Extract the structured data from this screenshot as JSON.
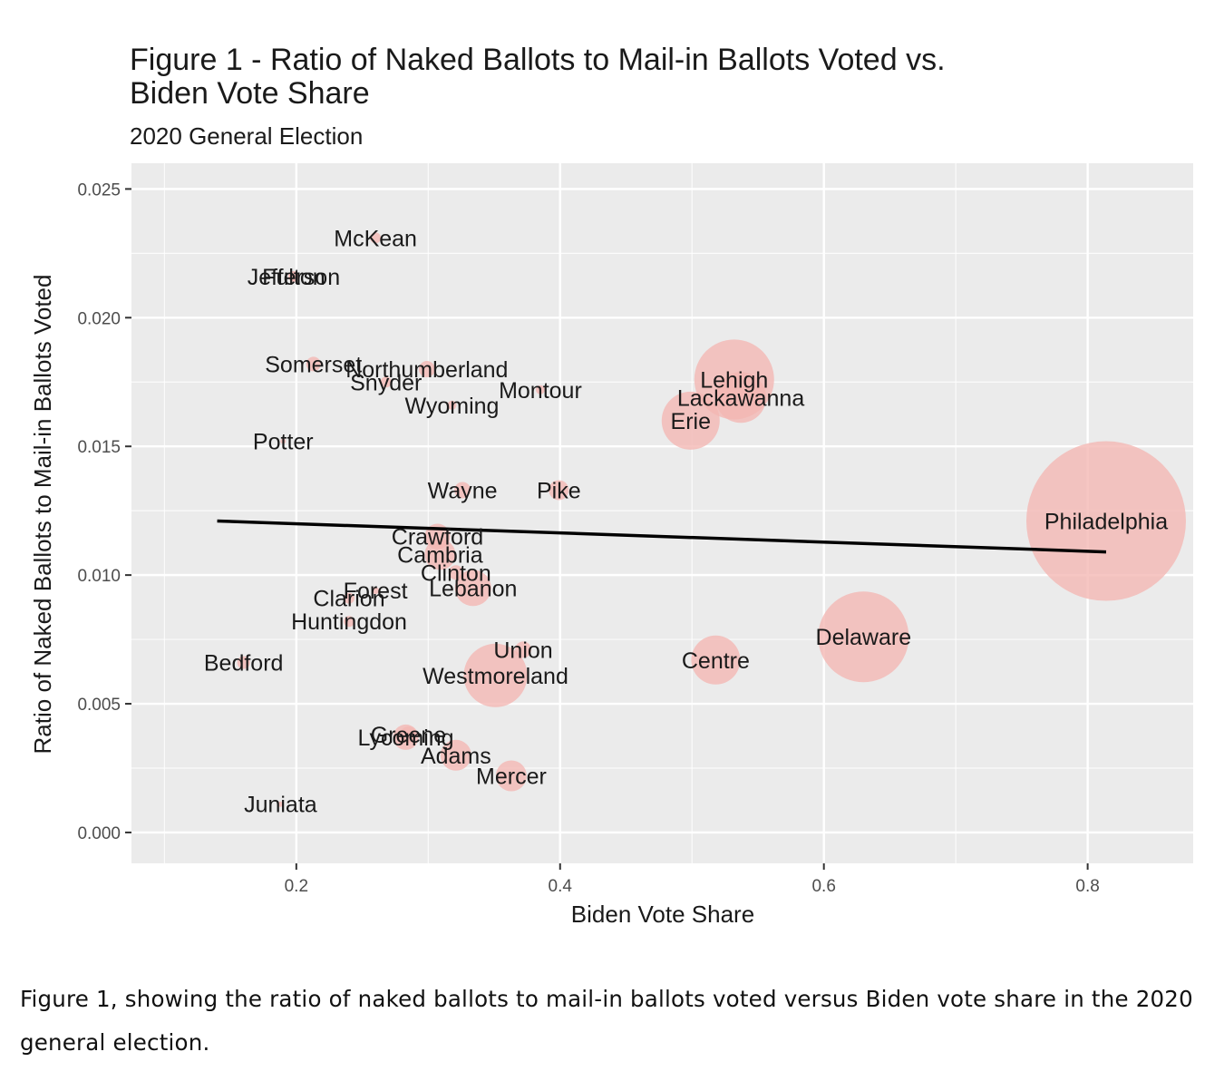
{
  "chart_data": {
    "type": "scatter",
    "title": "Figure 1 - Ratio of Naked Ballots to Mail-in Ballots Voted vs. Biden Vote Share",
    "title_lines": [
      "Figure 1 - Ratio of Naked Ballots to Mail-in Ballots Voted vs.",
      "Biden Vote Share"
    ],
    "subtitle": "2020 General Election",
    "xlabel": "Biden Vote Share",
    "ylabel": "Ratio of Naked Ballots to Mail-in Ballots Voted",
    "xlim": [
      0.075,
      0.88
    ],
    "ylim": [
      -0.0012,
      0.026
    ],
    "x_ticks": [
      0.2,
      0.4,
      0.6,
      0.8
    ],
    "x_tick_labels": [
      "0.2",
      "0.4",
      "0.6",
      "0.8"
    ],
    "y_ticks": [
      0.0,
      0.005,
      0.01,
      0.015,
      0.02,
      0.025
    ],
    "y_tick_labels": [
      "0.000",
      "0.005",
      "0.010",
      "0.015",
      "0.020",
      "0.025"
    ],
    "grid": true,
    "point_color": "#f4b6b2",
    "background_color": "#ebebeb",
    "grid_color": "#ffffff",
    "trend_line_color": "#000000",
    "point_size_encoding": "bubble size (no legend shown)",
    "points": [
      {
        "label": "McKean",
        "x": 0.26,
        "y": 0.0231,
        "size": 6
      },
      {
        "label": "Fulton",
        "x": 0.198,
        "y": 0.0216,
        "size": 5
      },
      {
        "label": "Jefferson",
        "x": 0.198,
        "y": 0.0216,
        "size": 6
      },
      {
        "label": "Somerset",
        "x": 0.213,
        "y": 0.0182,
        "size": 8
      },
      {
        "label": "Northumberland",
        "x": 0.299,
        "y": 0.018,
        "size": 9
      },
      {
        "label": "Snyder",
        "x": 0.268,
        "y": 0.0175,
        "size": 6
      },
      {
        "label": "Montour",
        "x": 0.385,
        "y": 0.0172,
        "size": 5
      },
      {
        "label": "Wyoming",
        "x": 0.318,
        "y": 0.0166,
        "size": 5
      },
      {
        "label": "Potter",
        "x": 0.19,
        "y": 0.0152,
        "size": 3
      },
      {
        "label": "Lehigh",
        "x": 0.532,
        "y": 0.0176,
        "size": 44
      },
      {
        "label": "Lackawanna",
        "x": 0.537,
        "y": 0.0169,
        "size": 28
      },
      {
        "label": "Erie",
        "x": 0.499,
        "y": 0.016,
        "size": 32
      },
      {
        "label": "Wayne",
        "x": 0.326,
        "y": 0.0133,
        "size": 9
      },
      {
        "label": "Pike",
        "x": 0.399,
        "y": 0.0133,
        "size": 11
      },
      {
        "label": "Philadelphia",
        "x": 0.814,
        "y": 0.0121,
        "size": 88
      },
      {
        "label": "Crawford",
        "x": 0.307,
        "y": 0.0115,
        "size": 14
      },
      {
        "label": "Cambria",
        "x": 0.309,
        "y": 0.0108,
        "size": 17
      },
      {
        "label": "Clinton",
        "x": 0.321,
        "y": 0.0101,
        "size": 8
      },
      {
        "label": "Forest",
        "x": 0.26,
        "y": 0.0094,
        "size": 4
      },
      {
        "label": "Lebanon",
        "x": 0.334,
        "y": 0.0095,
        "size": 20
      },
      {
        "label": "Clarion",
        "x": 0.24,
        "y": 0.0091,
        "size": 6
      },
      {
        "label": "Huntingdon",
        "x": 0.24,
        "y": 0.0082,
        "size": 6
      },
      {
        "label": "Delaware",
        "x": 0.63,
        "y": 0.0076,
        "size": 50
      },
      {
        "label": "Centre",
        "x": 0.518,
        "y": 0.0067,
        "size": 27
      },
      {
        "label": "Union",
        "x": 0.372,
        "y": 0.0071,
        "size": 9
      },
      {
        "label": "Westmoreland",
        "x": 0.351,
        "y": 0.0061,
        "size": 35
      },
      {
        "label": "Bedford",
        "x": 0.16,
        "y": 0.0066,
        "size": 7
      },
      {
        "label": "Greene",
        "x": 0.285,
        "y": 0.0038,
        "size": 9
      },
      {
        "label": "Lycoming",
        "x": 0.283,
        "y": 0.0037,
        "size": 14
      },
      {
        "label": "Adams",
        "x": 0.321,
        "y": 0.003,
        "size": 17
      },
      {
        "label": "Mercer",
        "x": 0.363,
        "y": 0.0022,
        "size": 17
      },
      {
        "label": "Juniata",
        "x": 0.188,
        "y": 0.0011,
        "size": 3
      }
    ],
    "trend_line": {
      "x": [
        0.14,
        0.814
      ],
      "y": [
        0.0121,
        0.0109
      ]
    }
  },
  "caption": "Figure 1, showing the ratio of naked ballots to mail-in ballots voted versus Biden vote share in the 2020 general election."
}
